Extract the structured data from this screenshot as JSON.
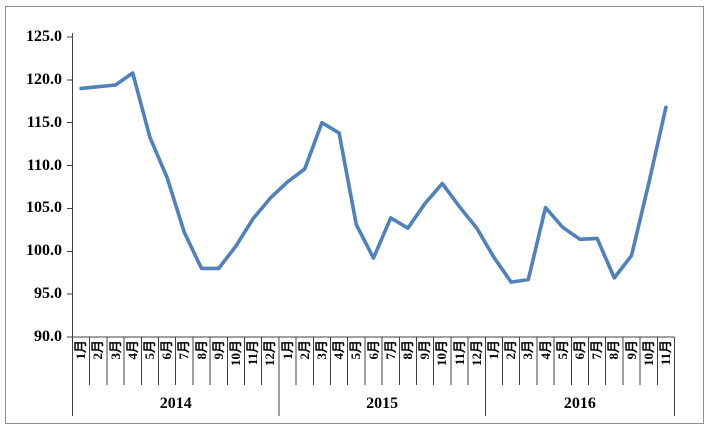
{
  "chart_data": {
    "type": "line",
    "title": "",
    "legend": "none",
    "grid": "off",
    "colors": {
      "line": "#4F81BD",
      "axis": "#404040",
      "frame": "#8f8f8f",
      "background": "#FFFFFF"
    },
    "y_axis": {
      "min": 90.0,
      "max": 125.0,
      "step": 5.0
    },
    "y_ticks": [
      125.0,
      120.0,
      115.0,
      110.0,
      105.0,
      100.0,
      95.0,
      90.0
    ],
    "y_tick_labels": [
      "125.0",
      "120.0",
      "115.0",
      "110.0",
      "105.0",
      "100.0",
      "95.0",
      "90.0"
    ],
    "groups": [
      {
        "year": "2014",
        "months": [
          "1月",
          "2月",
          "3月",
          "4月",
          "5月",
          "6月",
          "7月",
          "8月",
          "9月",
          "10月",
          "11月",
          "12月"
        ],
        "values": [
          119.0,
          119.2,
          119.4,
          120.8,
          113.3,
          108.6,
          102.2,
          98.0,
          98.0,
          100.6,
          103.8,
          106.2
        ]
      },
      {
        "year": "2015",
        "months": [
          "1月",
          "2月",
          "3月",
          "4月",
          "5月",
          "6月",
          "7月",
          "8月",
          "9月",
          "10月",
          "11月",
          "12月"
        ],
        "values": [
          108.1,
          109.6,
          115.0,
          113.8,
          103.1,
          99.2,
          103.9,
          102.7,
          105.6,
          107.9,
          105.2,
          102.7
        ]
      },
      {
        "year": "2016",
        "months": [
          "1月",
          "2月",
          "3月",
          "4月",
          "5月",
          "6月",
          "7月",
          "8月",
          "9月",
          "10月",
          "11月"
        ],
        "values": [
          99.3,
          96.4,
          96.7,
          105.1,
          102.8,
          101.4,
          101.5,
          96.9,
          99.5,
          107.9,
          116.8
        ]
      }
    ]
  }
}
